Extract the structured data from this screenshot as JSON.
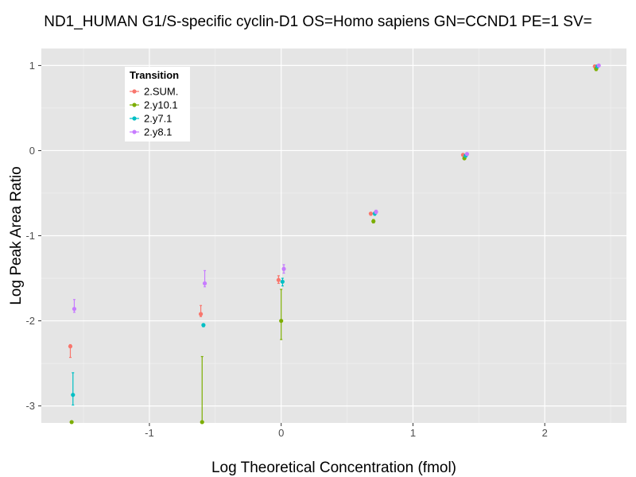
{
  "chart_data": {
    "type": "scatter",
    "title": "ND1_HUMAN G1/S-specific cyclin-D1 OS=Homo sapiens GN=CCND1 PE=1 SV=",
    "xlabel": "Log Theoretical Concentration (fmol)",
    "ylabel": "Log Peak Area Ratio",
    "xlim": [
      -1.82,
      2.62
    ],
    "ylim": [
      -3.2,
      1.2
    ],
    "x_ticks": [
      -1,
      0,
      1,
      2
    ],
    "y_ticks": [
      -3,
      -2,
      -1,
      0,
      1
    ],
    "grid": true,
    "legend": {
      "title": "Transition",
      "placement": "top-left"
    },
    "series": [
      {
        "name": "2.SUM.",
        "color": "#F8766D",
        "points": [
          {
            "x": -1.6,
            "y": -2.3,
            "lo": -2.43,
            "hi": -2.28
          },
          {
            "x": -0.61,
            "y": -1.92,
            "lo": -1.95,
            "hi": -1.82
          },
          {
            "x": -0.02,
            "y": -1.52,
            "lo": -1.56,
            "hi": -1.47
          },
          {
            "x": 0.68,
            "y": -0.74,
            "lo": -0.76,
            "hi": -0.73
          },
          {
            "x": 1.38,
            "y": -0.05,
            "lo": -0.06,
            "hi": -0.04
          },
          {
            "x": 2.38,
            "y": 0.99,
            "lo": 0.98,
            "hi": 1.0
          }
        ]
      },
      {
        "name": "2.y10.1",
        "color": "#7CAE00",
        "points": [
          {
            "x": -1.59,
            "y": -3.19,
            "lo": -3.2,
            "hi": -3.18
          },
          {
            "x": -0.6,
            "y": -3.19,
            "lo": -3.2,
            "hi": -2.42
          },
          {
            "x": 0.0,
            "y": -2.0,
            "lo": -2.22,
            "hi": -1.63
          },
          {
            "x": 0.7,
            "y": -0.83,
            "lo": -0.85,
            "hi": -0.81
          },
          {
            "x": 1.39,
            "y": -0.09,
            "lo": -0.1,
            "hi": -0.08
          },
          {
            "x": 2.39,
            "y": 0.96,
            "lo": 0.94,
            "hi": 0.98
          }
        ]
      },
      {
        "name": "2.y7.1",
        "color": "#00BFC4",
        "points": [
          {
            "x": -1.58,
            "y": -2.87,
            "lo": -2.99,
            "hi": -2.61
          },
          {
            "x": -0.59,
            "y": -2.05,
            "lo": -2.07,
            "hi": -2.04
          },
          {
            "x": 0.01,
            "y": -1.54,
            "lo": -1.59,
            "hi": -1.5
          },
          {
            "x": 0.71,
            "y": -0.74,
            "lo": -0.76,
            "hi": -0.72
          },
          {
            "x": 1.4,
            "y": -0.06,
            "lo": -0.07,
            "hi": -0.05
          },
          {
            "x": 2.4,
            "y": 0.99,
            "lo": 0.98,
            "hi": 1.0
          }
        ]
      },
      {
        "name": "2.y8.1",
        "color": "#C77CFF",
        "points": [
          {
            "x": -1.57,
            "y": -1.86,
            "lo": -1.9,
            "hi": -1.75
          },
          {
            "x": -0.58,
            "y": -1.56,
            "lo": -1.6,
            "hi": -1.41
          },
          {
            "x": 0.02,
            "y": -1.39,
            "lo": -1.44,
            "hi": -1.34
          },
          {
            "x": 0.72,
            "y": -0.72,
            "lo": -0.74,
            "hi": -0.7
          },
          {
            "x": 1.41,
            "y": -0.04,
            "lo": -0.05,
            "hi": -0.03
          },
          {
            "x": 2.41,
            "y": 1.0,
            "lo": 0.99,
            "hi": 1.01
          }
        ]
      }
    ]
  }
}
